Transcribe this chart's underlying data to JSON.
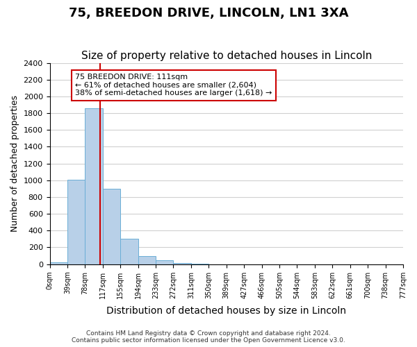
{
  "title": "75, BREEDON DRIVE, LINCOLN, LN1 3XA",
  "subtitle": "Size of property relative to detached houses in Lincoln",
  "xlabel": "Distribution of detached houses by size in Lincoln",
  "ylabel": "Number of detached properties",
  "bar_values": [
    20,
    1010,
    1860,
    900,
    300,
    100,
    45,
    15,
    5,
    0,
    0,
    0,
    0,
    0,
    0,
    0,
    0,
    0,
    0,
    0
  ],
  "bin_labels": [
    "0sqm",
    "39sqm",
    "78sqm",
    "117sqm",
    "155sqm",
    "194sqm",
    "233sqm",
    "272sqm",
    "311sqm",
    "350sqm",
    "389sqm",
    "427sqm",
    "466sqm",
    "505sqm",
    "544sqm",
    "583sqm",
    "622sqm",
    "661sqm",
    "700sqm",
    "738sqm",
    "777sqm"
  ],
  "bar_color": "#b8d0e8",
  "bar_edgecolor": "#6aaed6",
  "vline_x": 2.85,
  "vline_color": "#cc0000",
  "annotation_text": "75 BREEDON DRIVE: 111sqm\n← 61% of detached houses are smaller (2,604)\n38% of semi-detached houses are larger (1,618) →",
  "annotation_box_edgecolor": "#cc0000",
  "ylim": [
    0,
    2400
  ],
  "yticks": [
    0,
    200,
    400,
    600,
    800,
    1000,
    1200,
    1400,
    1600,
    1800,
    2000,
    2200,
    2400
  ],
  "footer_line1": "Contains HM Land Registry data © Crown copyright and database right 2024.",
  "footer_line2": "Contains public sector information licensed under the Open Government Licence v3.0.",
  "title_fontsize": 13,
  "subtitle_fontsize": 11,
  "xlabel_fontsize": 10,
  "ylabel_fontsize": 9,
  "background_color": "#ffffff",
  "grid_color": "#d0d0d0"
}
